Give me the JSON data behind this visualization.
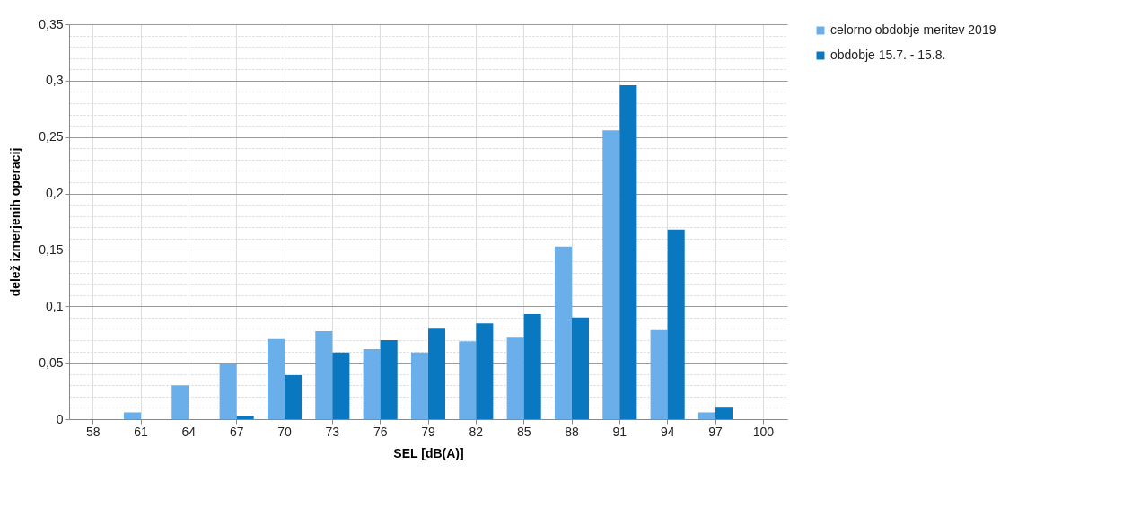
{
  "chart_data": {
    "type": "bar",
    "xlabel": "SEL [dB(A)]",
    "ylabel": "delež izmerjenih operacij",
    "categories": [
      "58",
      "61",
      "64",
      "67",
      "70",
      "73",
      "76",
      "79",
      "82",
      "85",
      "88",
      "91",
      "94",
      "97",
      "100"
    ],
    "series": [
      {
        "name": "celorno obdobje meritev 2019",
        "color": "#6aaeea",
        "values": [
          0,
          0.006,
          0.03,
          0.049,
          0.071,
          0.078,
          0.062,
          0.059,
          0.069,
          0.073,
          0.153,
          0.256,
          0.079,
          0.006,
          0
        ]
      },
      {
        "name": "obdobje 15.7. - 15.8.",
        "color": "#0a78c0",
        "values": [
          0,
          0,
          0,
          0.003,
          0.039,
          0.059,
          0.07,
          0.081,
          0.085,
          0.093,
          0.09,
          0.296,
          0.168,
          0.011,
          0
        ]
      }
    ],
    "ylim": [
      0,
      0.35
    ],
    "yticks": [
      {
        "value": 0,
        "label": "0"
      },
      {
        "value": 0.01,
        "label": null
      },
      {
        "value": 0.02,
        "label": null
      },
      {
        "value": 0.03,
        "label": null
      },
      {
        "value": 0.04,
        "label": null
      },
      {
        "value": 0.05,
        "label": "0,05"
      },
      {
        "value": 0.06,
        "label": null
      },
      {
        "value": 0.07,
        "label": null
      },
      {
        "value": 0.08,
        "label": null
      },
      {
        "value": 0.09,
        "label": null
      },
      {
        "value": 0.1,
        "label": "0,1"
      },
      {
        "value": 0.11,
        "label": null
      },
      {
        "value": 0.12,
        "label": null
      },
      {
        "value": 0.13,
        "label": null
      },
      {
        "value": 0.14,
        "label": null
      },
      {
        "value": 0.15,
        "label": "0,15"
      },
      {
        "value": 0.16,
        "label": null
      },
      {
        "value": 0.17,
        "label": null
      },
      {
        "value": 0.18,
        "label": null
      },
      {
        "value": 0.19,
        "label": null
      },
      {
        "value": 0.2,
        "label": "0,2"
      },
      {
        "value": 0.21,
        "label": null
      },
      {
        "value": 0.22,
        "label": null
      },
      {
        "value": 0.23,
        "label": null
      },
      {
        "value": 0.24,
        "label": null
      },
      {
        "value": 0.25,
        "label": "0,25"
      },
      {
        "value": 0.26,
        "label": null
      },
      {
        "value": 0.27,
        "label": null
      },
      {
        "value": 0.28,
        "label": null
      },
      {
        "value": 0.29,
        "label": null
      },
      {
        "value": 0.3,
        "label": "0,3"
      },
      {
        "value": 0.31,
        "label": null
      },
      {
        "value": 0.32,
        "label": null
      },
      {
        "value": 0.33,
        "label": null
      },
      {
        "value": 0.34,
        "label": null
      },
      {
        "value": 0.35,
        "label": "0,35"
      }
    ],
    "grid": true,
    "legend": "right"
  }
}
